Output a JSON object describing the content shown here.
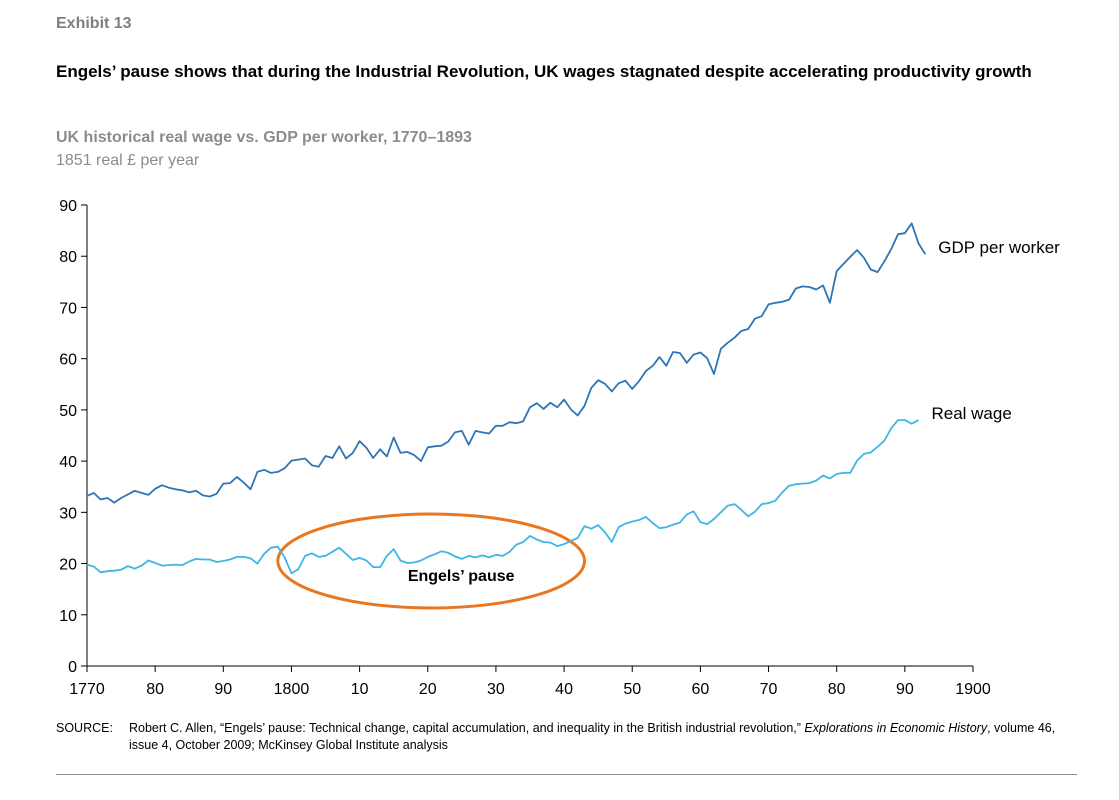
{
  "exhibit": "Exhibit 13",
  "title": "Engels’ pause shows that during the Industrial Revolution, UK wages stagnated despite accelerating productivity growth",
  "colors": {
    "gdp": "#2e75b6",
    "wage": "#3fb6e6",
    "ellipse": "#e87722",
    "axis": "#000000"
  },
  "chart_data": {
    "type": "line",
    "title": "UK historical real wage vs. GDP per worker, 1770–1893",
    "units": "1851 real £ per year",
    "xlabel": "",
    "ylabel": "",
    "xlim": [
      1770,
      1900
    ],
    "ylim": [
      0,
      90
    ],
    "y_ticks": [
      0,
      10,
      20,
      30,
      40,
      50,
      60,
      70,
      80,
      90
    ],
    "x_ticks": [
      1770,
      1780,
      1790,
      1800,
      1810,
      1820,
      1830,
      1840,
      1850,
      1860,
      1870,
      1880,
      1890,
      1900
    ],
    "x_tick_labels": [
      "1770",
      "80",
      "90",
      "1800",
      "10",
      "20",
      "30",
      "40",
      "50",
      "60",
      "70",
      "80",
      "90",
      "1900"
    ],
    "grid": false,
    "series": [
      {
        "name": "GDP per worker",
        "label": "GDP per worker",
        "x_start": 1770,
        "values": [
          33.2,
          33.8,
          32.5,
          32.8,
          31.9,
          32.8,
          33.5,
          34.2,
          33.8,
          33.4,
          34.6,
          35.3,
          34.8,
          34.5,
          34.3,
          33.9,
          34.2,
          33.3,
          33.1,
          33.6,
          35.6,
          35.7,
          36.9,
          35.8,
          34.5,
          37.9,
          38.3,
          37.7,
          37.9,
          38.6,
          40.1,
          40.3,
          40.5,
          39.2,
          38.9,
          41.0,
          40.6,
          42.9,
          40.5,
          41.6,
          43.9,
          42.6,
          40.6,
          42.3,
          40.9,
          44.6,
          41.6,
          41.8,
          41.2,
          40.0,
          42.7,
          42.9,
          43.0,
          43.8,
          45.6,
          45.9,
          43.2,
          45.9,
          45.6,
          45.4,
          46.9,
          46.9,
          47.6,
          47.4,
          47.8,
          50.5,
          51.3,
          50.2,
          51.4,
          50.5,
          52.0,
          50.1,
          48.9,
          50.8,
          54.3,
          55.8,
          55.1,
          53.6,
          55.2,
          55.7,
          54.1,
          55.6,
          57.6,
          58.6,
          60.3,
          58.6,
          61.3,
          61.1,
          59.2,
          60.8,
          61.2,
          60.1,
          57.0,
          61.9,
          63.1,
          64.1,
          65.4,
          65.8,
          67.8,
          68.3,
          70.6,
          70.9,
          71.1,
          71.5,
          73.7,
          74.1,
          74.0,
          73.5,
          74.3,
          70.9,
          77.1,
          78.5,
          79.9,
          81.2,
          79.7,
          77.4,
          76.9,
          79.0,
          81.4,
          84.3,
          84.5,
          86.4,
          82.5,
          80.4
        ]
      },
      {
        "name": "Real wage",
        "label": "Real wage",
        "x_start": 1770,
        "values": [
          19.8,
          19.4,
          18.3,
          18.5,
          18.6,
          18.8,
          19.5,
          19.0,
          19.6,
          20.6,
          20.1,
          19.6,
          19.7,
          19.8,
          19.7,
          20.4,
          20.9,
          20.8,
          20.8,
          20.3,
          20.5,
          20.8,
          21.3,
          21.3,
          21.0,
          20.0,
          21.9,
          23.1,
          23.3,
          21.2,
          18.1,
          18.9,
          21.5,
          22.0,
          21.3,
          21.5,
          22.3,
          23.1,
          21.9,
          20.7,
          21.1,
          20.6,
          19.3,
          19.3,
          21.5,
          22.8,
          20.6,
          20.1,
          20.2,
          20.6,
          21.3,
          21.8,
          22.4,
          22.1,
          21.4,
          20.9,
          21.5,
          21.2,
          21.6,
          21.2,
          21.7,
          21.5,
          22.3,
          23.7,
          24.2,
          25.4,
          24.7,
          24.2,
          24.1,
          23.4,
          23.8,
          24.4,
          25.0,
          27.3,
          26.8,
          27.5,
          26.1,
          24.2,
          27.1,
          27.8,
          28.2,
          28.5,
          29.1,
          27.9,
          26.9,
          27.1,
          27.6,
          28.0,
          29.6,
          30.2,
          28.1,
          27.7,
          28.7,
          30.0,
          31.3,
          31.6,
          30.5,
          29.2,
          30.1,
          31.6,
          31.8,
          32.3,
          33.9,
          35.2,
          35.5,
          35.6,
          35.7,
          36.2,
          37.2,
          36.6,
          37.5,
          37.7,
          37.7,
          40.1,
          41.4,
          41.7,
          42.8,
          44.0,
          46.4,
          48.0,
          48.0,
          47.3,
          48.0
        ]
      }
    ],
    "annotations": [
      {
        "text": "Engels’ pause",
        "x_range": [
          1798,
          1843
        ],
        "y_center": 20.5,
        "shape": "ellipse"
      }
    ]
  },
  "source": {
    "label": "SOURCE:",
    "text_before": "Robert C. Allen, “Engels’ pause: Technical change, capital accumulation, and inequality in the British industrial revolution,” ",
    "journal": "Explorations in Economic History",
    "text_after": ", volume 46, issue 4, October 2009; McKinsey Global Institute analysis"
  }
}
